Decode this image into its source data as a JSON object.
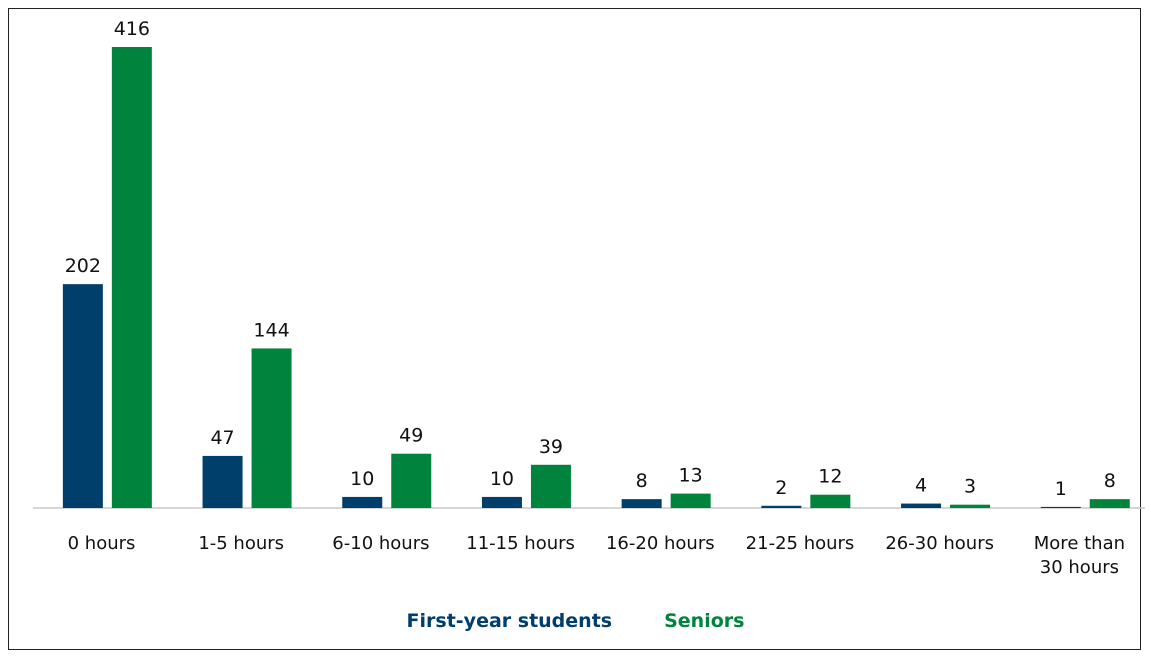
{
  "chart_data": {
    "type": "bar",
    "categories": [
      "0 hours",
      "1-5 hours",
      "6-10 hours",
      "11-15 hours",
      "16-20 hours",
      "21-25 hours",
      "26-30 hours",
      "More than 30 hours"
    ],
    "series": [
      {
        "name": "First-year students",
        "color": "#003f6b",
        "values": [
          202,
          47,
          10,
          10,
          8,
          2,
          4,
          1
        ]
      },
      {
        "name": "Seniors",
        "color": "#00843d",
        "values": [
          416,
          144,
          49,
          39,
          13,
          12,
          3,
          8
        ]
      }
    ],
    "legend": "bottom"
  }
}
